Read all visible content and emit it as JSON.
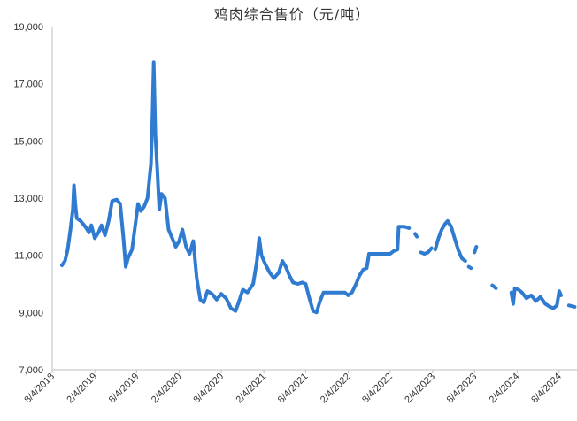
{
  "chart_data": {
    "type": "line",
    "title": "鸡肉综合售价（元/吨）",
    "xlabel": "",
    "ylabel": "",
    "ylim": [
      7000,
      19000
    ],
    "yticks": [
      7000,
      9000,
      11000,
      13000,
      15000,
      17000,
      19000
    ],
    "ytick_labels": [
      "7,000",
      "9,000",
      "11,000",
      "13,000",
      "15,000",
      "17,000",
      "19,000"
    ],
    "xlim": [
      "2018-08-04",
      "2024-10-20"
    ],
    "xticks": [
      "2018-08-04",
      "2019-02-04",
      "2019-08-04",
      "2020-02-04",
      "2020-08-04",
      "2021-02-04",
      "2021-08-04",
      "2022-02-04",
      "2022-08-04",
      "2023-02-04",
      "2023-08-04",
      "2024-02-04",
      "2024-08-04"
    ],
    "xtick_labels": [
      "8/4/2018",
      "2/4/2019",
      "8/4/2019",
      "2/4/2020",
      "8/4/2020",
      "2/4/2021",
      "8/4/2021",
      "2/4/2022",
      "8/4/2022",
      "2/4/2023",
      "8/4/2023",
      "2/4/2024",
      "8/4/2024"
    ],
    "grid": false,
    "legend": "none",
    "line_color": "#2e7bd1",
    "series": [
      {
        "segments": [
          [
            [
              "2018-09-15",
              10650
            ],
            [
              "2018-09-28",
              10800
            ],
            [
              "2018-10-10",
              11200
            ],
            [
              "2018-10-22",
              11900
            ],
            [
              "2018-11-01",
              12600
            ],
            [
              "2018-11-06",
              13450
            ],
            [
              "2018-11-12",
              12800
            ],
            [
              "2018-11-18",
              12300
            ],
            [
              "2018-12-05",
              12200
            ],
            [
              "2018-12-25",
              12000
            ],
            [
              "2019-01-10",
              11800
            ],
            [
              "2019-01-20",
              12050
            ],
            [
              "2019-02-04",
              11600
            ],
            [
              "2019-02-20",
              11800
            ],
            [
              "2019-03-05",
              12050
            ],
            [
              "2019-03-20",
              11700
            ],
            [
              "2019-04-05",
              12200
            ],
            [
              "2019-04-20",
              12900
            ],
            [
              "2019-05-10",
              12950
            ],
            [
              "2019-05-25",
              12800
            ],
            [
              "2019-06-08",
              11600
            ],
            [
              "2019-06-18",
              10600
            ],
            [
              "2019-06-28",
              10900
            ],
            [
              "2019-07-15",
              11200
            ],
            [
              "2019-07-28",
              12000
            ],
            [
              "2019-08-10",
              12800
            ],
            [
              "2019-08-22",
              12550
            ],
            [
              "2019-09-05",
              12700
            ],
            [
              "2019-09-20",
              13000
            ],
            [
              "2019-10-05",
              14200
            ],
            [
              "2019-10-12",
              16000
            ],
            [
              "2019-10-17",
              17750
            ],
            [
              "2019-10-24",
              15200
            ],
            [
              "2019-11-02",
              13900
            ],
            [
              "2019-11-10",
              12600
            ],
            [
              "2019-11-20",
              13150
            ],
            [
              "2019-12-05",
              13000
            ],
            [
              "2019-12-20",
              11900
            ],
            [
              "2020-01-05",
              11600
            ],
            [
              "2020-01-20",
              11300
            ],
            [
              "2020-02-04",
              11500
            ],
            [
              "2020-02-18",
              11900
            ],
            [
              "2020-03-05",
              11300
            ],
            [
              "2020-03-20",
              11050
            ],
            [
              "2020-04-05",
              11500
            ],
            [
              "2020-04-20",
              10200
            ],
            [
              "2020-05-05",
              9450
            ],
            [
              "2020-05-20",
              9350
            ],
            [
              "2020-06-05",
              9750
            ],
            [
              "2020-06-25",
              9650
            ],
            [
              "2020-07-15",
              9450
            ],
            [
              "2020-08-04",
              9650
            ],
            [
              "2020-08-25",
              9500
            ],
            [
              "2020-09-15",
              9150
            ],
            [
              "2020-10-05",
              9050
            ],
            [
              "2020-10-20",
              9400
            ],
            [
              "2020-11-05",
              9800
            ],
            [
              "2020-11-25",
              9700
            ],
            [
              "2020-12-20",
              10000
            ],
            [
              "2021-01-05",
              10800
            ],
            [
              "2021-01-15",
              11600
            ],
            [
              "2021-01-25",
              11000
            ],
            [
              "2021-02-10",
              10700
            ],
            [
              "2021-03-01",
              10400
            ],
            [
              "2021-03-20",
              10200
            ],
            [
              "2021-04-10",
              10400
            ],
            [
              "2021-04-25",
              10800
            ],
            [
              "2021-05-10",
              10600
            ],
            [
              "2021-05-25",
              10300
            ],
            [
              "2021-06-10",
              10050
            ],
            [
              "2021-07-01",
              10000
            ],
            [
              "2021-07-20",
              10050
            ],
            [
              "2021-08-04",
              10000
            ],
            [
              "2021-08-20",
              9500
            ],
            [
              "2021-09-05",
              9050
            ],
            [
              "2021-09-20",
              9000
            ],
            [
              "2021-10-05",
              9400
            ],
            [
              "2021-10-20",
              9700
            ],
            [
              "2021-11-20",
              9700
            ],
            [
              "2021-12-20",
              9700
            ],
            [
              "2022-01-20",
              9700
            ],
            [
              "2022-02-04",
              9600
            ],
            [
              "2022-02-20",
              9700
            ],
            [
              "2022-03-10",
              10000
            ],
            [
              "2022-03-25",
              10300
            ],
            [
              "2022-04-10",
              10500
            ],
            [
              "2022-04-25",
              10550
            ],
            [
              "2022-05-05",
              11050
            ],
            [
              "2022-06-05",
              11050
            ],
            [
              "2022-07-05",
              11050
            ],
            [
              "2022-08-04",
              11050
            ],
            [
              "2022-08-20",
              11150
            ],
            [
              "2022-09-05",
              11200
            ],
            [
              "2022-09-10",
              12000
            ],
            [
              "2022-10-05",
              12000
            ],
            [
              "2022-10-25",
              11950
            ]
          ],
          [
            [
              "2022-11-20",
              11750
            ],
            [
              "2022-11-28",
              11650
            ]
          ],
          [
            [
              "2022-12-15",
              11100
            ],
            [
              "2022-12-30",
              11050
            ],
            [
              "2023-01-15",
              11100
            ],
            [
              "2023-01-30",
              11250
            ]
          ],
          [
            [
              "2023-02-15",
              11200
            ],
            [
              "2023-03-01",
              11600
            ],
            [
              "2023-03-15",
              11900
            ],
            [
              "2023-03-30",
              12100
            ],
            [
              "2023-04-10",
              12200
            ],
            [
              "2023-04-25",
              12000
            ],
            [
              "2023-05-10",
              11600
            ],
            [
              "2023-05-25",
              11200
            ],
            [
              "2023-06-10",
              10900
            ],
            [
              "2023-06-25",
              10800
            ]
          ],
          [
            [
              "2023-07-10",
              10600
            ],
            [
              "2023-07-20",
              10550
            ]
          ],
          [
            [
              "2023-08-04",
              11100
            ],
            [
              "2023-08-12",
              11300
            ]
          ],
          [
            [
              "2023-10-20",
              9950
            ],
            [
              "2023-11-05",
              9850
            ]
          ],
          [
            [
              "2024-01-10",
              9700
            ],
            [
              "2024-01-18",
              9300
            ],
            [
              "2024-01-25",
              9850
            ],
            [
              "2024-02-10",
              9800
            ],
            [
              "2024-02-25",
              9700
            ],
            [
              "2024-03-15",
              9500
            ],
            [
              "2024-04-05",
              9600
            ],
            [
              "2024-04-25",
              9400
            ],
            [
              "2024-05-15",
              9550
            ],
            [
              "2024-06-05",
              9300
            ],
            [
              "2024-06-25",
              9200
            ],
            [
              "2024-07-10",
              9150
            ],
            [
              "2024-07-25",
              9250
            ],
            [
              "2024-08-04",
              9750
            ],
            [
              "2024-08-12",
              9600
            ]
          ],
          [
            [
              "2024-09-15",
              9250
            ],
            [
              "2024-10-10",
              9200
            ]
          ]
        ]
      }
    ]
  }
}
